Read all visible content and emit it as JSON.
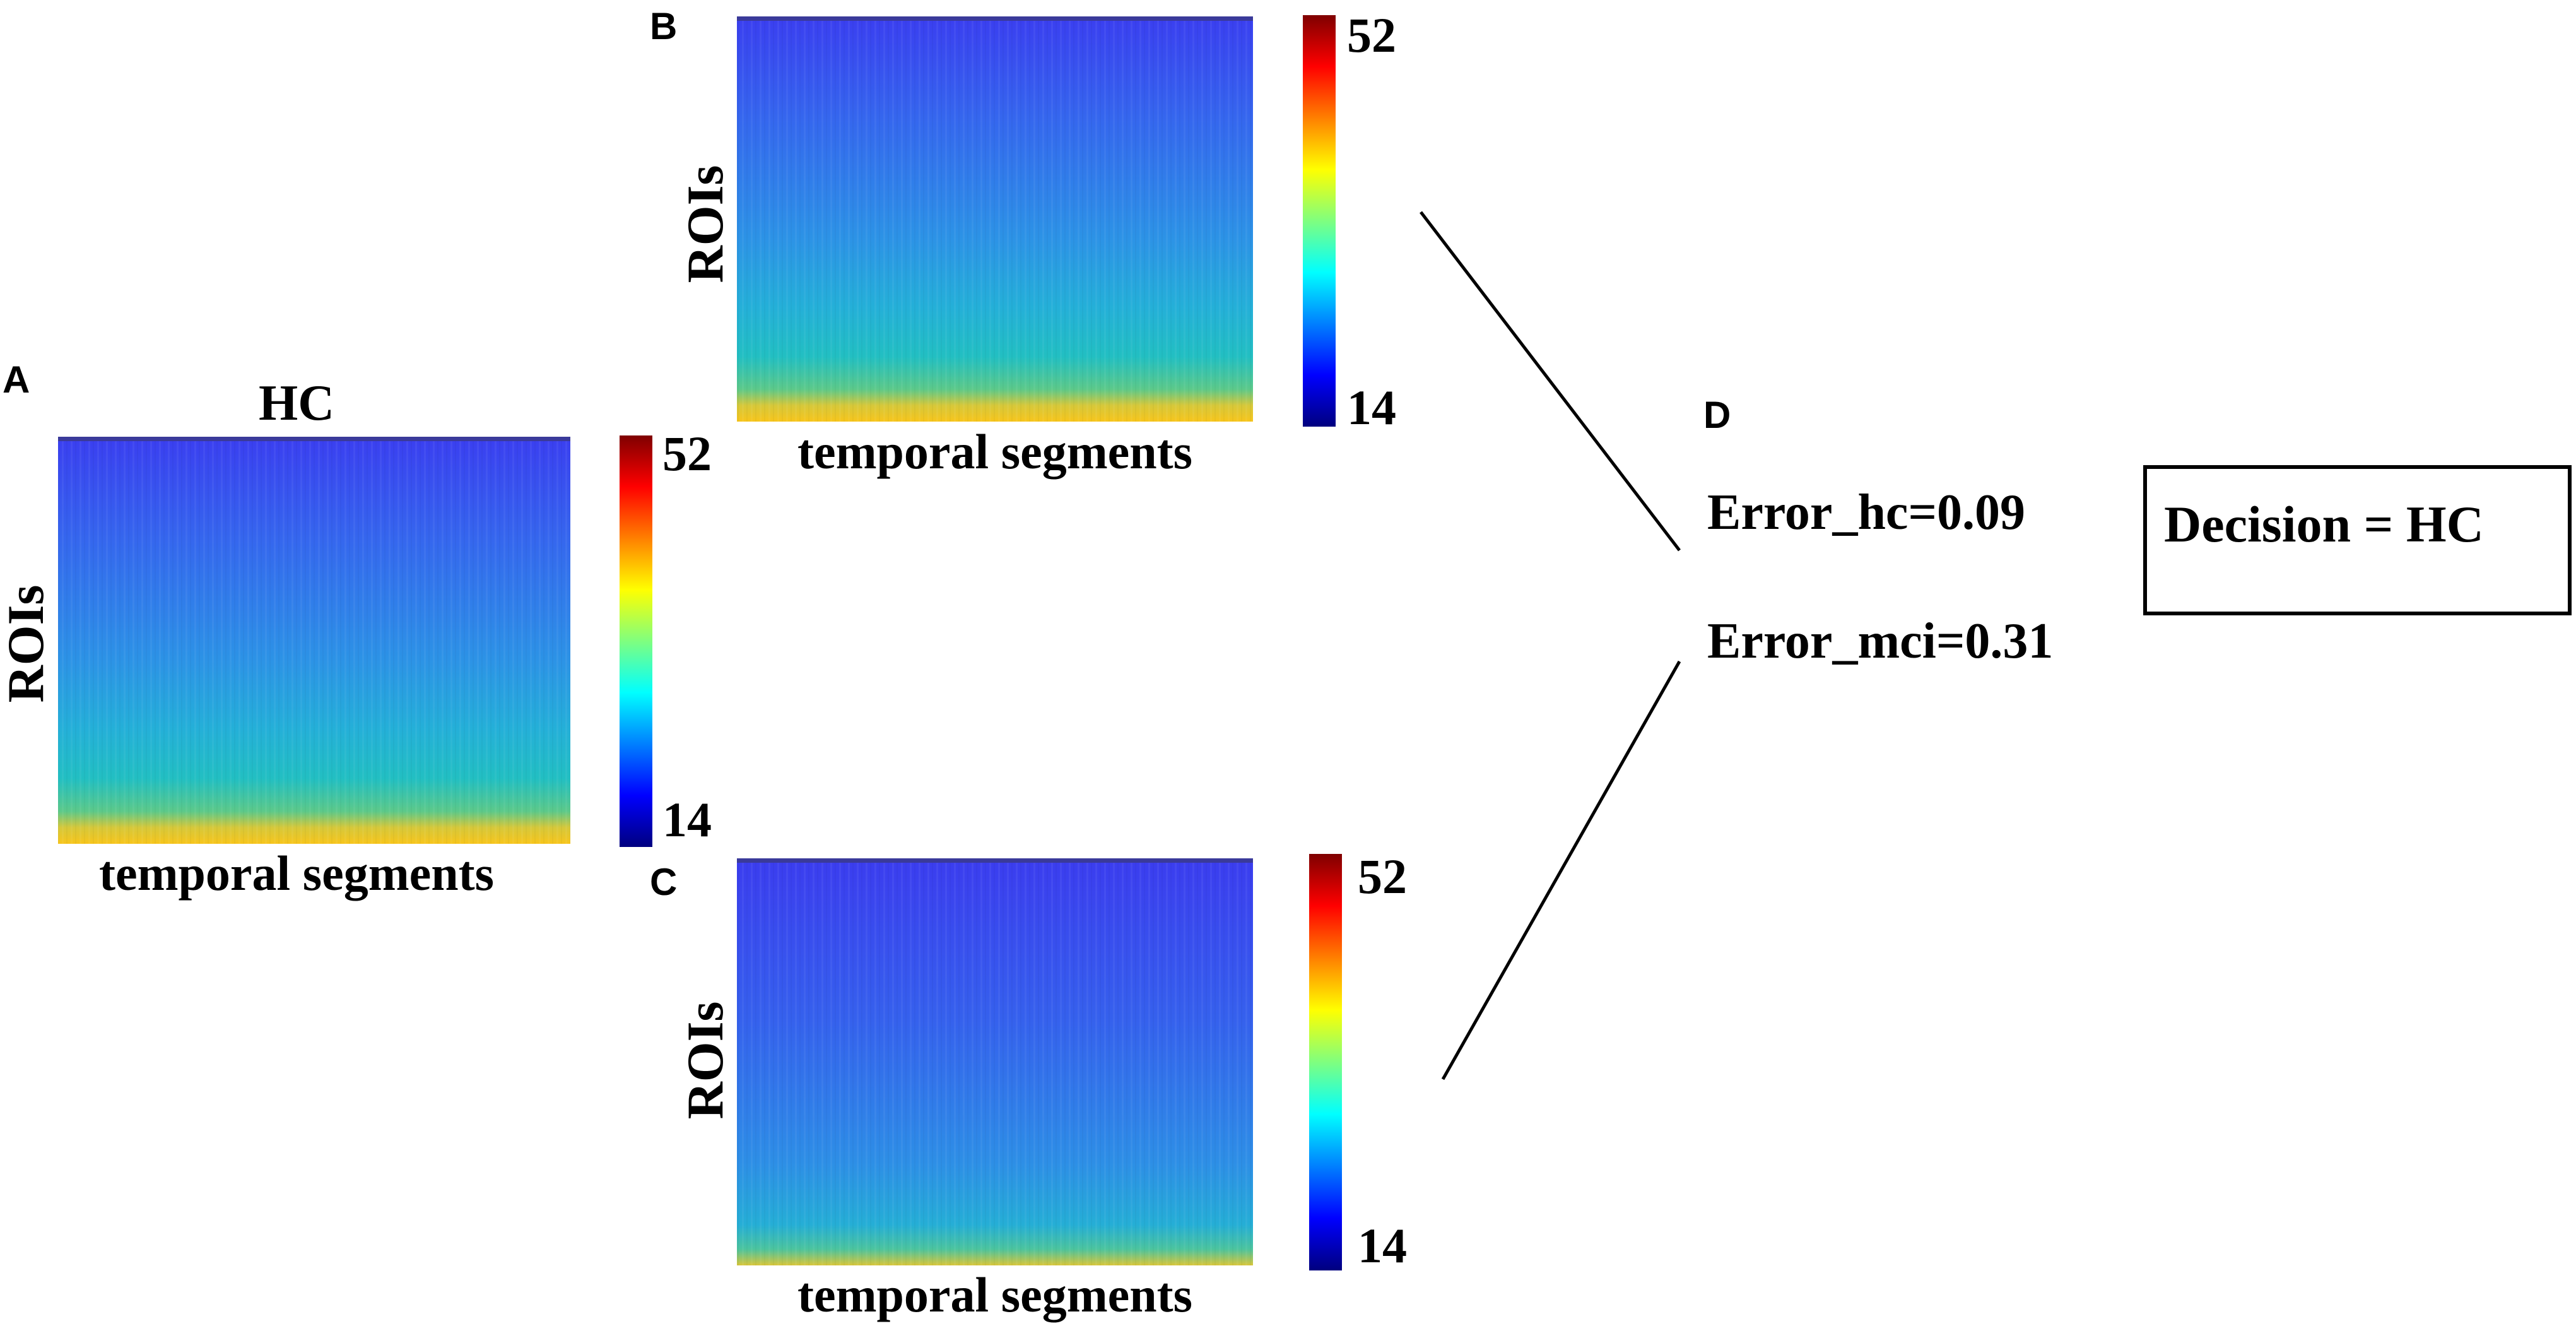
{
  "panels": {
    "A": {
      "letter": "A",
      "title": "HC",
      "xlabel": "temporal segments",
      "ylabel": "ROIs",
      "cbar_max": "52",
      "cbar_min": "14"
    },
    "B": {
      "letter": "B",
      "title": "",
      "xlabel": "temporal segments",
      "ylabel": "ROIs",
      "cbar_max": "52",
      "cbar_min": "14"
    },
    "C": {
      "letter": "C",
      "title": "",
      "xlabel": "temporal segments",
      "ylabel": "ROIs",
      "cbar_max": "52",
      "cbar_min": "14"
    },
    "D": {
      "letter": "D"
    }
  },
  "errors": {
    "hc": "Error_hc=0.09",
    "mci": "Error_mci=0.31"
  },
  "decision": "Decision = HC",
  "colors": {
    "colormap": "jet",
    "heatmap_top": "#3d3ff0",
    "heatmap_mid": "#2aa0e8",
    "heatmap_low": "#1fc7c0",
    "heatmap_bottom": "#f2c21a"
  }
}
